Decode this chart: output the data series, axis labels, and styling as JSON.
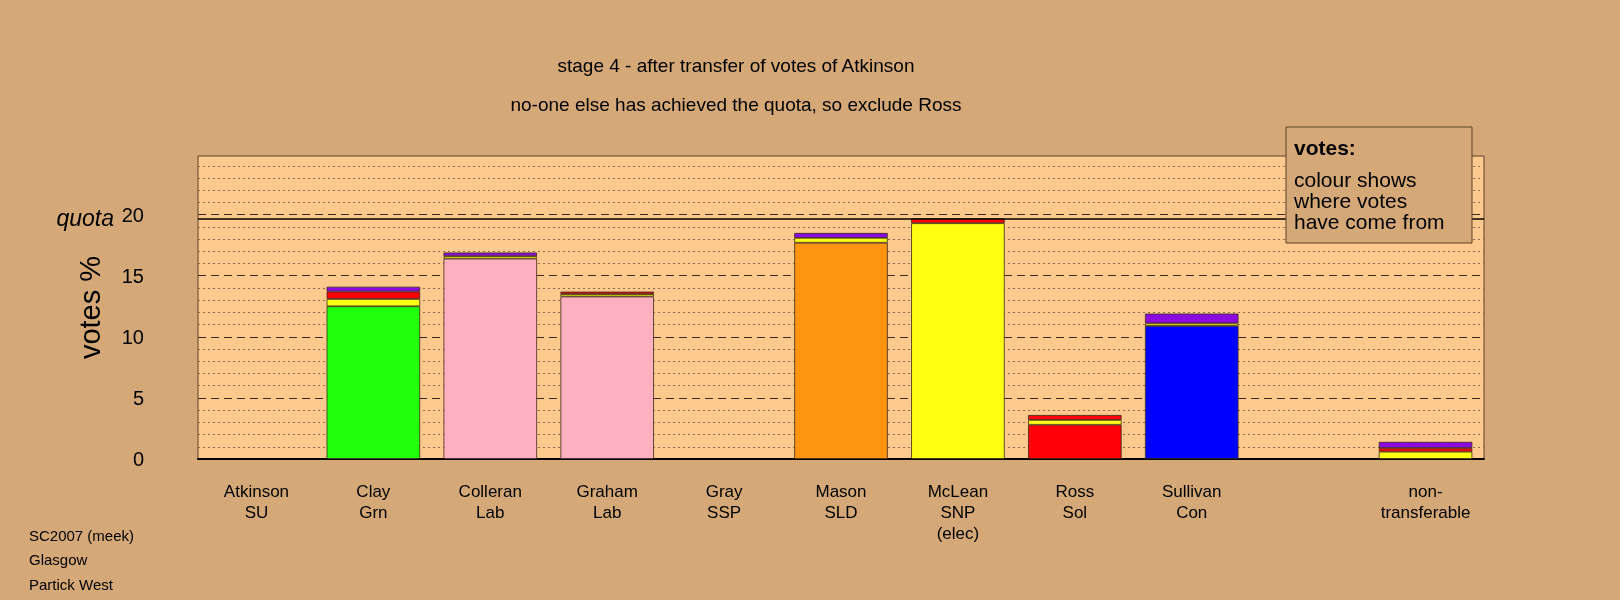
{
  "chart_data": {
    "type": "bar",
    "title": "stage 4 - after transfer of votes of Atkinson",
    "subtitle": "no-one else has achieved the quota, so exclude Ross",
    "ylabel": "votes %",
    "categories": [
      "Atkinson\nSU",
      "Clay\nGrn",
      "Colleran\nLab",
      "Graham\nLab",
      "Gray\nSSP",
      "Mason\nSLD",
      "McLean\nSNP\n(elec)",
      "Ross\nSol",
      "Sullivan\nCon",
      null,
      "non-\ntransferable"
    ],
    "stacked": true,
    "series": [
      {
        "values": [
          null,
          12.5,
          16.4,
          13.3,
          null,
          17.7,
          19.3,
          2.8,
          10.9,
          null,
          null
        ],
        "colors": [
          null,
          "#22ff0a",
          "#ffb0c0",
          "#ffb0c0",
          null,
          "#ff9410",
          "#ffff14",
          "#ff0008",
          "#0000ff",
          null,
          null
        ]
      },
      {
        "color": "#ffff14",
        "values": [
          null,
          0.6,
          0.2,
          0.2,
          null,
          0.4,
          null,
          0.4,
          0.2,
          null,
          0.6
        ]
      },
      {
        "color": "#ff0008",
        "values": [
          null,
          0.6,
          null,
          0.2,
          null,
          null,
          0.4,
          0.4,
          null,
          null,
          0.3
        ]
      },
      {
        "color": "#8a0ae0",
        "values": [
          null,
          0.4,
          0.3,
          null,
          null,
          0.4,
          null,
          null,
          0.8,
          null,
          0.5
        ]
      }
    ],
    "ylim": [
      0,
      24.8
    ],
    "yticks": [
      0,
      {
        "value": 1,
        "label": null
      },
      {
        "value": 2,
        "label": null
      },
      {
        "value": 3,
        "label": null
      },
      {
        "value": 4,
        "label": null
      },
      5,
      {
        "value": 6,
        "label": null
      },
      {
        "value": 7,
        "label": null
      },
      {
        "value": 8,
        "label": null
      },
      {
        "value": 9,
        "label": null
      },
      10,
      {
        "value": 11,
        "label": null
      },
      {
        "value": 12,
        "label": null
      },
      {
        "value": 13,
        "label": null
      },
      {
        "value": 14,
        "label": null
      },
      15,
      {
        "value": 16,
        "label": null
      },
      {
        "value": 17,
        "label": null
      },
      {
        "value": 18,
        "label": null
      },
      {
        "value": 19,
        "label": null
      },
      20,
      {
        "value": 21,
        "label": null
      },
      {
        "value": 22,
        "label": null
      },
      {
        "value": 23,
        "label": null
      },
      {
        "value": 24,
        "label": null
      }
    ],
    "grid": "y",
    "ref_lines": [
      {
        "axis": "y",
        "value": 19.7,
        "label": "quota",
        "color": "#000000",
        "line_style": "solid"
      }
    ],
    "annotations": [
      "votes:",
      "colour shows\nwhere votes\nhave come from",
      "SC2007 (meek)",
      "Glasgow",
      "Partick West"
    ]
  }
}
